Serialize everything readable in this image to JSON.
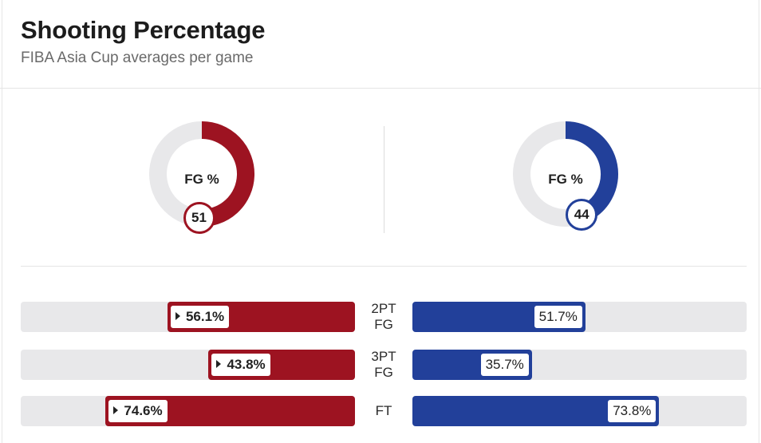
{
  "title": "Shooting Percentage",
  "subtitle": "FIBA Asia Cup averages per game",
  "colors": {
    "left": "#9d1321",
    "right": "#22409a",
    "track": "#e8e8ea"
  },
  "chart_data": [
    {
      "type": "pie",
      "label": "FG %",
      "teams": [
        {
          "value": 51,
          "display": "51"
        },
        {
          "value": 44,
          "display": "44"
        }
      ]
    },
    {
      "type": "bar",
      "categories": [
        "2PT FG",
        "3PT FG",
        "FT"
      ],
      "category_lines": [
        [
          "2PT",
          "FG"
        ],
        [
          "3PT",
          "FG"
        ],
        [
          "FT",
          ""
        ]
      ],
      "xlim": [
        0,
        100
      ],
      "series": [
        {
          "values": [
            56.1,
            43.8,
            74.6
          ],
          "labels": [
            "56.1%",
            "43.8%",
            "74.6%"
          ],
          "leader": [
            true,
            true,
            true
          ]
        },
        {
          "values": [
            51.7,
            35.7,
            73.8
          ],
          "labels": [
            "51.7%",
            "35.7%",
            "73.8%"
          ],
          "leader": [
            false,
            false,
            false
          ]
        }
      ]
    }
  ]
}
